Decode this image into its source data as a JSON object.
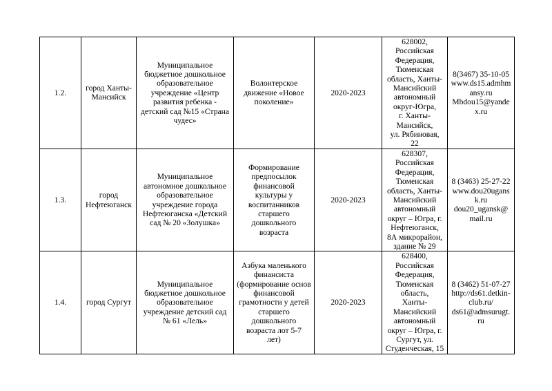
{
  "rows": [
    {
      "num": "1.2.",
      "city": "город Ханты-\nМансийск",
      "org": "Муниципальное\nбюджетное дошкольное\nобразовательное\nучреждение «Центр\nразвития ребенка -\nдетский сад №15 «Страна\nчудес»",
      "project": "Волонтерское\nдвижение «Новое\nпоколение»",
      "period": "2020-2023",
      "address": "628002,\nРоссийская\nФедерация,\nТюменская\nобласть, Ханты-\nМансийский\nавтономный\nокруг-Югра,\nг. Ханты-\nМансийск,\nул. Рябиновая,\n22",
      "contacts": "8(3467) 35-10-05\nwww.ds15.admhm\nansy.ru\nMbdou15@yande\nx.ru"
    },
    {
      "num": "1.3.",
      "city": "город\nНефтеюганск",
      "org": "Муниципальное\nавтономное дошкольное\nобразовательное\nучреждение города\nНефтеюганска «Детский\nсад № 20 «Золушка»",
      "project": "Формирование\nпредпосылок\nфинансовой\nкультуры у\nвоспитанников\nстаршего\nдошкольного\nвозраста",
      "period": "2020-2023",
      "address": "628307,\nРоссийская\nФедерация,\nТюменская\nобласть, Ханты-\nМансийский\nавтономный\nокруг – Югра, г.\nНефтеюганск,\n8А микрорайон,\nздание № 29",
      "contacts": "8 (3463) 25-27-22\nwww.dou20ugans\nk.ru\ndou20_ugansk@\nmail.ru"
    },
    {
      "num": "1.4.",
      "city": "город Сургут",
      "org": "Муниципальное\nбюджетное дошкольное\nобразовательное\nучреждение детский сад\n№ 61 «Лель»",
      "project": "Азбука маленького\nфинансиста\n(формирование основ\nфинансовой\nграмотности у детей\nстаршего\nдошкольного\nвозраста лот 5-7\nлет)",
      "period": "2020-2023",
      "address": "628400,\nРоссийская\nФедерация,\nТюменская\nобласть,\nХанты-\nМансийский\nавтономный\nокруг – Югра, г.\nСургут, ул.\nСтуденческая, 15",
      "contacts": "8 (3462) 51-07-27\nhttp://ds61.detkin-\nclub.ru/\nds61@admsurugt.\nru"
    }
  ]
}
